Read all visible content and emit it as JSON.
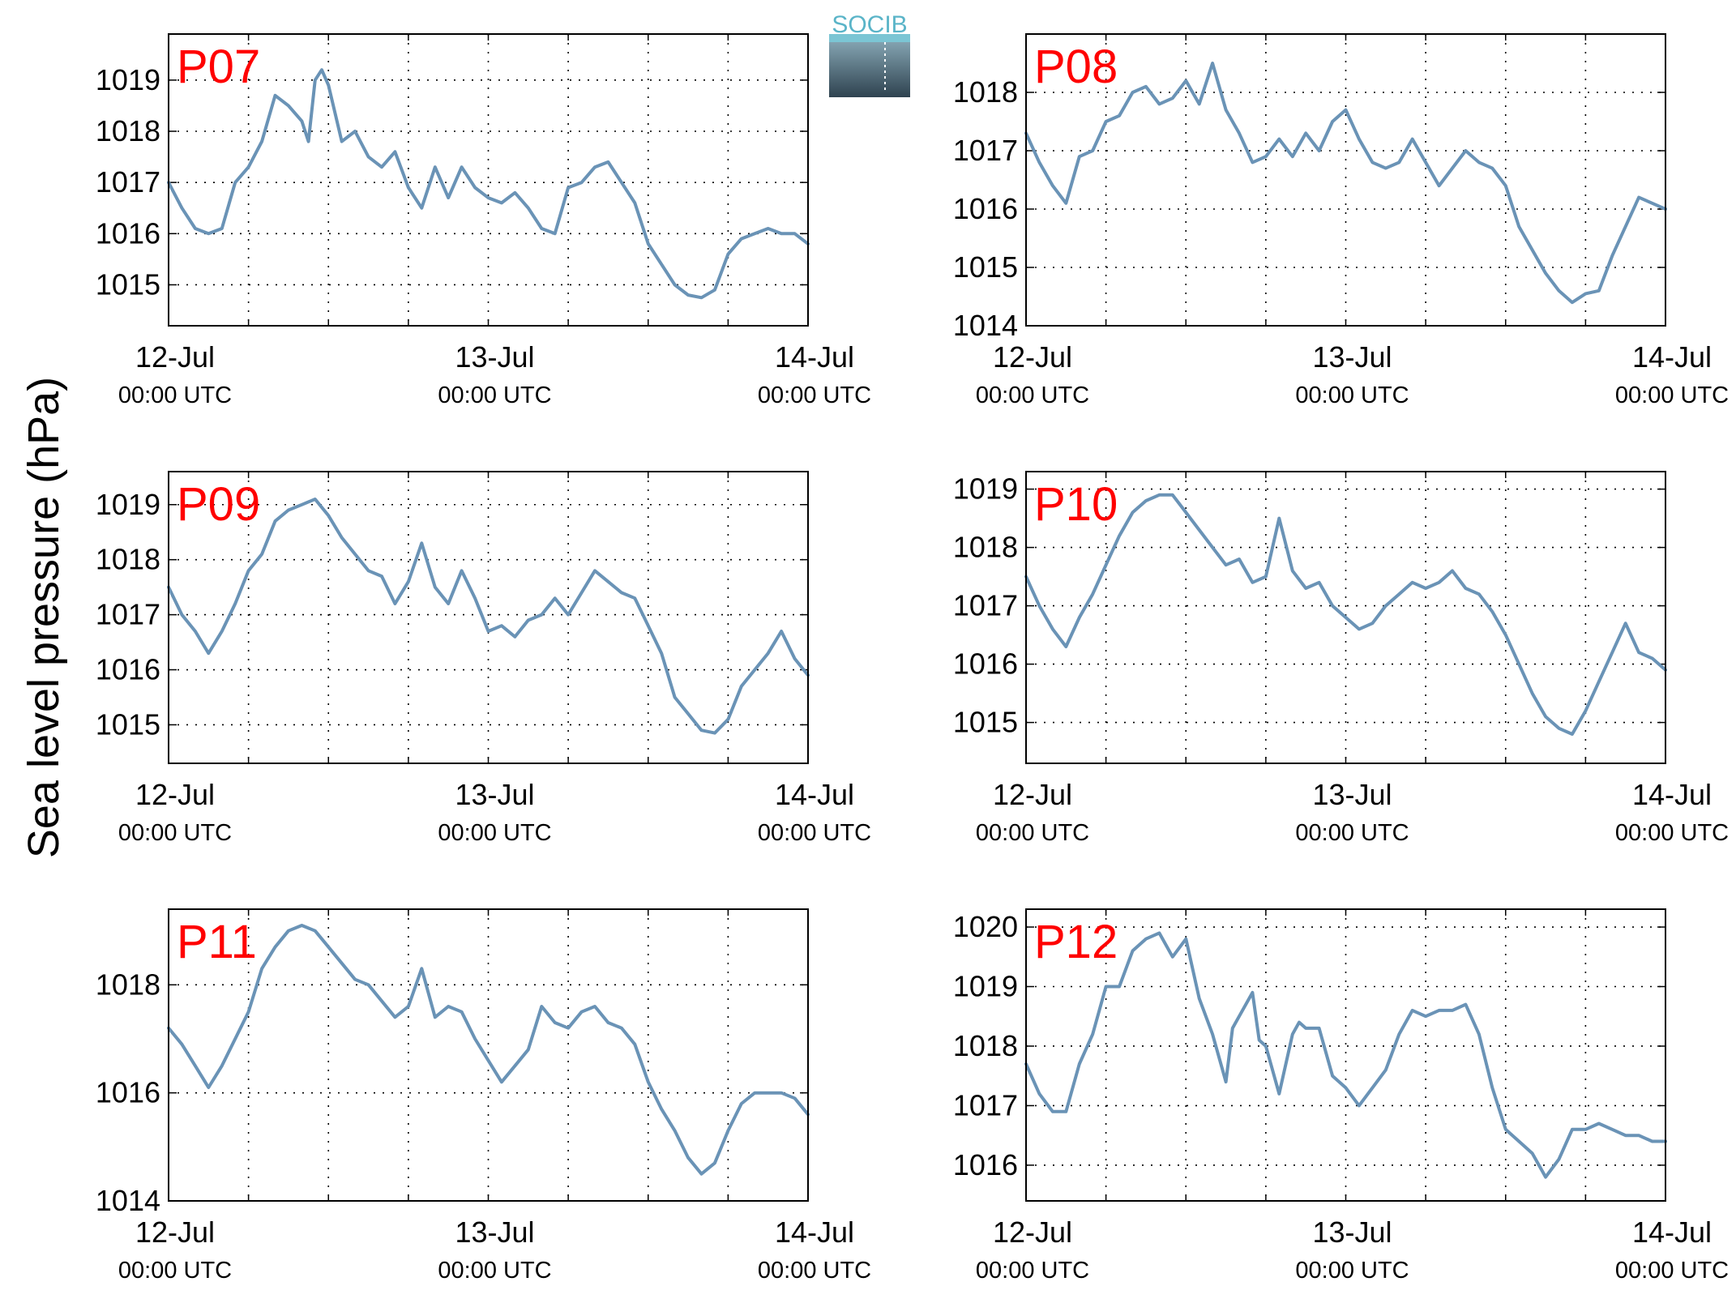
{
  "figure": {
    "ylabel": "Sea level pressure (hPa)",
    "logo_text": "SOCIB"
  },
  "colors": {
    "line": "#6a93b6",
    "panel_label": "#ff0000",
    "axis": "#000000",
    "logo_top": "#5ab4c8",
    "logo_bottom": "#2f4350"
  },
  "chart_data": [
    {
      "type": "line",
      "panel_label": "P07",
      "x_unit": "hours since 12-Jul 00:00 UTC",
      "xlim": [
        0,
        48
      ],
      "xticks": [
        {
          "line1": "12-Jul",
          "line2": "00:00 UTC"
        },
        {
          "line1": "13-Jul",
          "line2": "00:00 UTC"
        },
        {
          "line1": "14-Jul",
          "line2": "00:00 UTC"
        }
      ],
      "ylim": [
        1014.2,
        1019.9
      ],
      "yticks": [
        1015,
        1016,
        1017,
        1018,
        1019
      ],
      "grid": true,
      "x": [
        0,
        1,
        2,
        3,
        4,
        5,
        6,
        7,
        8,
        9,
        10,
        10.5,
        11,
        11.5,
        12,
        13,
        14,
        15,
        16,
        17,
        18,
        19,
        20,
        21,
        22,
        23,
        24,
        25,
        26,
        27,
        28,
        29,
        30,
        31,
        32,
        33,
        34,
        35,
        36,
        37,
        38,
        39,
        40,
        41,
        42,
        43,
        44,
        45,
        46,
        47,
        48
      ],
      "y": [
        1017.0,
        1016.5,
        1016.1,
        1016.0,
        1016.1,
        1017.0,
        1017.3,
        1017.8,
        1018.7,
        1018.5,
        1018.2,
        1017.8,
        1019.0,
        1019.2,
        1018.9,
        1017.8,
        1018.0,
        1017.5,
        1017.3,
        1017.6,
        1016.9,
        1016.5,
        1017.3,
        1016.7,
        1017.3,
        1016.9,
        1016.7,
        1016.6,
        1016.8,
        1016.5,
        1016.1,
        1016.0,
        1016.9,
        1017.0,
        1017.3,
        1017.4,
        1017.0,
        1016.6,
        1015.8,
        1015.4,
        1015.0,
        1014.8,
        1014.75,
        1014.9,
        1015.6,
        1015.9,
        1016.0,
        1016.1,
        1016.0,
        1016.0,
        1015.8
      ]
    },
    {
      "type": "line",
      "panel_label": "P08",
      "x_unit": "hours since 12-Jul 00:00 UTC",
      "xlim": [
        0,
        48
      ],
      "xticks": [
        {
          "line1": "12-Jul",
          "line2": "00:00 UTC"
        },
        {
          "line1": "13-Jul",
          "line2": "00:00 UTC"
        },
        {
          "line1": "14-Jul",
          "line2": "00:00 UTC"
        }
      ],
      "ylim": [
        1014.0,
        1019.0
      ],
      "yticks": [
        1014,
        1015,
        1016,
        1017,
        1018
      ],
      "grid": true,
      "x": [
        0,
        1,
        2,
        3,
        4,
        5,
        6,
        7,
        8,
        9,
        10,
        11,
        12,
        13,
        14,
        15,
        16,
        17,
        18,
        19,
        20,
        21,
        22,
        23,
        24,
        25,
        26,
        27,
        28,
        29,
        30,
        31,
        32,
        33,
        34,
        35,
        36,
        37,
        38,
        39,
        40,
        41,
        42,
        43,
        44,
        45,
        46,
        47,
        48
      ],
      "y": [
        1017.3,
        1016.8,
        1016.4,
        1016.1,
        1016.9,
        1017.0,
        1017.5,
        1017.6,
        1018.0,
        1018.1,
        1017.8,
        1017.9,
        1018.2,
        1017.8,
        1018.5,
        1017.7,
        1017.3,
        1016.8,
        1016.9,
        1017.2,
        1016.9,
        1017.3,
        1017.0,
        1017.5,
        1017.7,
        1017.2,
        1016.8,
        1016.7,
        1016.8,
        1017.2,
        1016.8,
        1016.4,
        1016.7,
        1017.0,
        1016.8,
        1016.7,
        1016.4,
        1015.7,
        1015.3,
        1014.9,
        1014.6,
        1014.4,
        1014.55,
        1014.6,
        1015.2,
        1015.7,
        1016.2,
        1016.1,
        1016.0
      ]
    },
    {
      "type": "line",
      "panel_label": "P09",
      "x_unit": "hours since 12-Jul 00:00 UTC",
      "xlim": [
        0,
        48
      ],
      "xticks": [
        {
          "line1": "12-Jul",
          "line2": "00:00 UTC"
        },
        {
          "line1": "13-Jul",
          "line2": "00:00 UTC"
        },
        {
          "line1": "14-Jul",
          "line2": "00:00 UTC"
        }
      ],
      "ylim": [
        1014.3,
        1019.6
      ],
      "yticks": [
        1015,
        1016,
        1017,
        1018,
        1019
      ],
      "grid": true,
      "x": [
        0,
        1,
        2,
        3,
        4,
        5,
        6,
        7,
        8,
        9,
        10,
        11,
        12,
        13,
        14,
        15,
        16,
        17,
        18,
        19,
        20,
        21,
        22,
        23,
        24,
        25,
        26,
        27,
        28,
        29,
        30,
        31,
        32,
        33,
        34,
        35,
        36,
        37,
        38,
        39,
        40,
        41,
        42,
        43,
        44,
        45,
        46,
        47,
        48
      ],
      "y": [
        1017.5,
        1017.0,
        1016.7,
        1016.3,
        1016.7,
        1017.2,
        1017.8,
        1018.1,
        1018.7,
        1018.9,
        1019.0,
        1019.1,
        1018.8,
        1018.4,
        1018.1,
        1017.8,
        1017.7,
        1017.2,
        1017.6,
        1018.3,
        1017.5,
        1017.2,
        1017.8,
        1017.3,
        1016.7,
        1016.8,
        1016.6,
        1016.9,
        1017.0,
        1017.3,
        1017.0,
        1017.4,
        1017.8,
        1017.6,
        1017.4,
        1017.3,
        1016.8,
        1016.3,
        1015.5,
        1015.2,
        1014.9,
        1014.85,
        1015.1,
        1015.7,
        1016.0,
        1016.3,
        1016.7,
        1016.2,
        1015.9
      ]
    },
    {
      "type": "line",
      "panel_label": "P10",
      "x_unit": "hours since 12-Jul 00:00 UTC",
      "xlim": [
        0,
        48
      ],
      "xticks": [
        {
          "line1": "12-Jul",
          "line2": "00:00 UTC"
        },
        {
          "line1": "13-Jul",
          "line2": "00:00 UTC"
        },
        {
          "line1": "14-Jul",
          "line2": "00:00 UTC"
        }
      ],
      "ylim": [
        1014.3,
        1019.3
      ],
      "yticks": [
        1015,
        1016,
        1017,
        1018,
        1019
      ],
      "grid": true,
      "x": [
        0,
        1,
        2,
        3,
        4,
        5,
        6,
        7,
        8,
        9,
        10,
        11,
        12,
        13,
        14,
        15,
        16,
        17,
        18,
        19,
        20,
        21,
        22,
        23,
        24,
        25,
        26,
        27,
        28,
        29,
        30,
        31,
        32,
        33,
        34,
        35,
        36,
        37,
        38,
        39,
        40,
        41,
        42,
        43,
        44,
        45,
        46,
        47,
        48
      ],
      "y": [
        1017.5,
        1017.0,
        1016.6,
        1016.3,
        1016.8,
        1017.2,
        1017.7,
        1018.2,
        1018.6,
        1018.8,
        1018.9,
        1018.9,
        1018.6,
        1018.3,
        1018.0,
        1017.7,
        1017.8,
        1017.4,
        1017.5,
        1018.5,
        1017.6,
        1017.3,
        1017.4,
        1017.0,
        1016.8,
        1016.6,
        1016.7,
        1017.0,
        1017.2,
        1017.4,
        1017.3,
        1017.4,
        1017.6,
        1017.3,
        1017.2,
        1016.9,
        1016.5,
        1016.0,
        1015.5,
        1015.1,
        1014.9,
        1014.8,
        1015.2,
        1015.7,
        1016.2,
        1016.7,
        1016.2,
        1016.1,
        1015.9
      ]
    },
    {
      "type": "line",
      "panel_label": "P11",
      "x_unit": "hours since 12-Jul 00:00 UTC",
      "xlim": [
        0,
        48
      ],
      "xticks": [
        {
          "line1": "12-Jul",
          "line2": "00:00 UTC"
        },
        {
          "line1": "13-Jul",
          "line2": "00:00 UTC"
        },
        {
          "line1": "14-Jul",
          "line2": "00:00 UTC"
        }
      ],
      "ylim": [
        1014.0,
        1019.4
      ],
      "yticks": [
        1014,
        1016,
        1018
      ],
      "grid": true,
      "x": [
        0,
        1,
        2,
        3,
        4,
        5,
        6,
        7,
        8,
        9,
        10,
        11,
        12,
        13,
        14,
        15,
        16,
        17,
        18,
        19,
        20,
        21,
        22,
        23,
        24,
        25,
        26,
        27,
        28,
        29,
        30,
        31,
        32,
        33,
        34,
        35,
        36,
        37,
        38,
        39,
        40,
        41,
        42,
        43,
        44,
        45,
        46,
        47,
        48
      ],
      "y": [
        1017.2,
        1016.9,
        1016.5,
        1016.1,
        1016.5,
        1017.0,
        1017.5,
        1018.3,
        1018.7,
        1019.0,
        1019.1,
        1019.0,
        1018.7,
        1018.4,
        1018.1,
        1018.0,
        1017.7,
        1017.4,
        1017.6,
        1018.3,
        1017.4,
        1017.6,
        1017.5,
        1017.0,
        1016.6,
        1016.2,
        1016.5,
        1016.8,
        1017.6,
        1017.3,
        1017.2,
        1017.5,
        1017.6,
        1017.3,
        1017.2,
        1016.9,
        1016.2,
        1015.7,
        1015.3,
        1014.8,
        1014.5,
        1014.7,
        1015.3,
        1015.8,
        1016.0,
        1016.0,
        1016.0,
        1015.9,
        1015.6
      ]
    },
    {
      "type": "line",
      "panel_label": "P12",
      "x_unit": "hours since 12-Jul 00:00 UTC",
      "xlim": [
        0,
        48
      ],
      "xticks": [
        {
          "line1": "12-Jul",
          "line2": "00:00 UTC"
        },
        {
          "line1": "13-Jul",
          "line2": "00:00 UTC"
        },
        {
          "line1": "14-Jul",
          "line2": "00:00 UTC"
        }
      ],
      "ylim": [
        1015.4,
        1020.3
      ],
      "yticks": [
        1016,
        1017,
        1018,
        1019,
        1020
      ],
      "grid": true,
      "x": [
        0,
        1,
        2,
        3,
        4,
        5,
        6,
        7,
        8,
        9,
        10,
        11,
        12,
        13,
        14,
        15,
        15.5,
        16,
        17,
        17.5,
        18,
        19,
        20,
        20.5,
        21,
        22,
        23,
        24,
        25,
        26,
        27,
        28,
        29,
        30,
        31,
        32,
        33,
        34,
        35,
        36,
        37,
        38,
        39,
        40,
        41,
        42,
        43,
        44,
        45,
        46,
        47,
        48
      ],
      "y": [
        1017.7,
        1017.2,
        1016.9,
        1016.9,
        1017.7,
        1018.2,
        1019.0,
        1019.0,
        1019.6,
        1019.8,
        1019.9,
        1019.5,
        1019.8,
        1018.8,
        1018.2,
        1017.4,
        1018.3,
        1018.5,
        1018.9,
        1018.1,
        1018.0,
        1017.2,
        1018.2,
        1018.4,
        1018.3,
        1018.3,
        1017.5,
        1017.3,
        1017.0,
        1017.3,
        1017.6,
        1018.2,
        1018.6,
        1018.5,
        1018.6,
        1018.6,
        1018.7,
        1018.2,
        1017.3,
        1016.6,
        1016.4,
        1016.2,
        1015.8,
        1016.1,
        1016.6,
        1016.6,
        1016.7,
        1016.6,
        1016.5,
        1016.5,
        1016.4,
        1016.4
      ]
    }
  ]
}
